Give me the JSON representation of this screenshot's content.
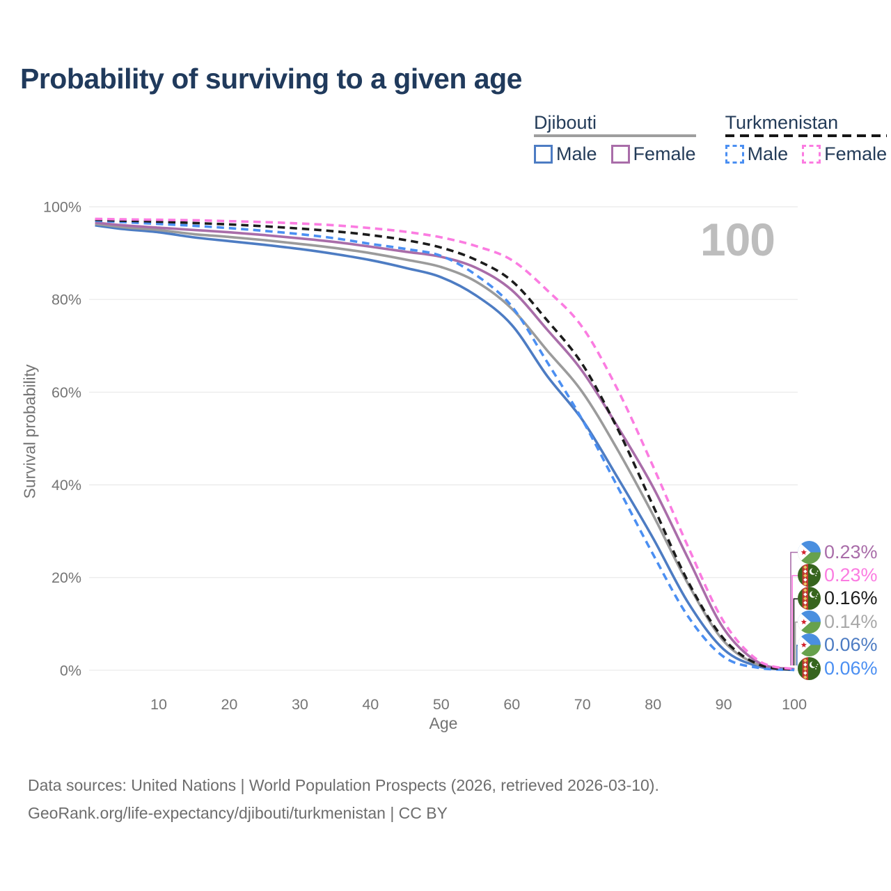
{
  "title": "Probability of surviving to a given age",
  "watermark": "100",
  "legend": {
    "groups": [
      {
        "country": "Djibouti",
        "line_style": "solid",
        "underline_color": "#9e9e9e",
        "items": [
          {
            "label": "Male",
            "color": "#4d7cc3"
          },
          {
            "label": "Female",
            "color": "#a96da9"
          }
        ]
      },
      {
        "country": "Turkmenistan",
        "line_style": "dashed",
        "underline_color": "#161616",
        "items": [
          {
            "label": "Male",
            "color": "#4b8ff2"
          },
          {
            "label": "Female",
            "color": "#fb7ce1"
          }
        ]
      }
    ]
  },
  "chart_data": {
    "type": "line",
    "title": "Probability of surviving to a given age",
    "xlabel": "Age",
    "ylabel": "Survival probability",
    "xlim": [
      0,
      100
    ],
    "ylim": [
      0,
      100
    ],
    "grid": "horizontal",
    "x_ticks": [
      10,
      20,
      30,
      40,
      50,
      60,
      70,
      80,
      90,
      100
    ],
    "y_tick_values": [
      0,
      20,
      40,
      60,
      80,
      100
    ],
    "y_tick_labels": [
      "0%",
      "20%",
      "40%",
      "60%",
      "80%",
      "100%"
    ],
    "x": [
      1,
      5,
      10,
      15,
      20,
      25,
      30,
      35,
      40,
      45,
      50,
      55,
      60,
      65,
      70,
      75,
      80,
      85,
      90,
      95,
      100
    ],
    "series": [
      {
        "name": "Djibouti Male",
        "color": "#4d7cc3",
        "dashed": false,
        "values": [
          96.0,
          95.2,
          94.5,
          93.4,
          92.6,
          91.8,
          90.9,
          89.8,
          88.5,
          86.8,
          84.8,
          80.8,
          74.5,
          63.5,
          54.0,
          41.5,
          28.5,
          14.5,
          4.5,
          0.8,
          0.06
        ]
      },
      {
        "name": "Djibouti Both sexes",
        "color": "#9b9b9b",
        "dashed": false,
        "values": [
          96.3,
          95.6,
          95.0,
          94.1,
          93.5,
          92.8,
          92.0,
          91.1,
          90.0,
          88.6,
          87.0,
          83.8,
          78.0,
          69.0,
          60.0,
          47.5,
          33.5,
          18.5,
          6.3,
          1.1,
          0.14
        ]
      },
      {
        "name": "Djibouti Female",
        "color": "#a96da9",
        "dashed": false,
        "values": [
          96.6,
          96.0,
          95.5,
          95.0,
          94.5,
          93.9,
          93.2,
          92.4,
          91.4,
          90.3,
          89.2,
          86.8,
          82.0,
          73.5,
          64.5,
          52.5,
          39.5,
          24.0,
          9.0,
          1.6,
          0.23
        ]
      },
      {
        "name": "Turkmenistan Male",
        "color": "#4b8ff2",
        "dashed": true,
        "values": [
          97.0,
          96.7,
          96.3,
          95.9,
          95.4,
          94.8,
          94.1,
          93.2,
          92.0,
          90.9,
          89.4,
          85.2,
          78.5,
          66.5,
          54.0,
          39.5,
          25.0,
          11.5,
          2.9,
          0.5,
          0.06
        ]
      },
      {
        "name": "Turkmenistan Both sexes",
        "color": "#1c1c1c",
        "dashed": true,
        "values": [
          97.2,
          97.0,
          96.8,
          96.5,
          96.2,
          95.8,
          95.3,
          94.7,
          93.9,
          92.8,
          91.2,
          88.5,
          84.0,
          75.5,
          66.0,
          52.0,
          35.5,
          19.0,
          6.8,
          1.2,
          0.16
        ]
      },
      {
        "name": "Turkmenistan Female",
        "color": "#fb7ce1",
        "dashed": true,
        "values": [
          97.4,
          97.3,
          97.2,
          97.1,
          96.9,
          96.7,
          96.4,
          96.0,
          95.4,
          94.6,
          93.4,
          91.5,
          88.5,
          82.0,
          74.0,
          60.5,
          44.0,
          26.5,
          10.5,
          2.0,
          0.23
        ]
      }
    ]
  },
  "callouts": [
    {
      "flag": "djibouti",
      "value": "0.23%",
      "color": "#a96da9"
    },
    {
      "flag": "turkmenistan",
      "value": "0.23%",
      "color": "#fb7ce1"
    },
    {
      "flag": "turkmenistan",
      "value": "0.16%",
      "color": "#1c1c1c"
    },
    {
      "flag": "djibouti",
      "value": "0.14%",
      "color": "#a8a8a8"
    },
    {
      "flag": "djibouti",
      "value": "0.06%",
      "color": "#4d7cc3"
    },
    {
      "flag": "turkmenistan",
      "value": "0.06%",
      "color": "#4b8ff2"
    }
  ],
  "source_lines": [
    "Data sources: United Nations | World Population Prospects (2026, retrieved 2026-03-10).",
    "GeoRank.org/life-expectancy/djibouti/turkmenistan | CC BY"
  ]
}
